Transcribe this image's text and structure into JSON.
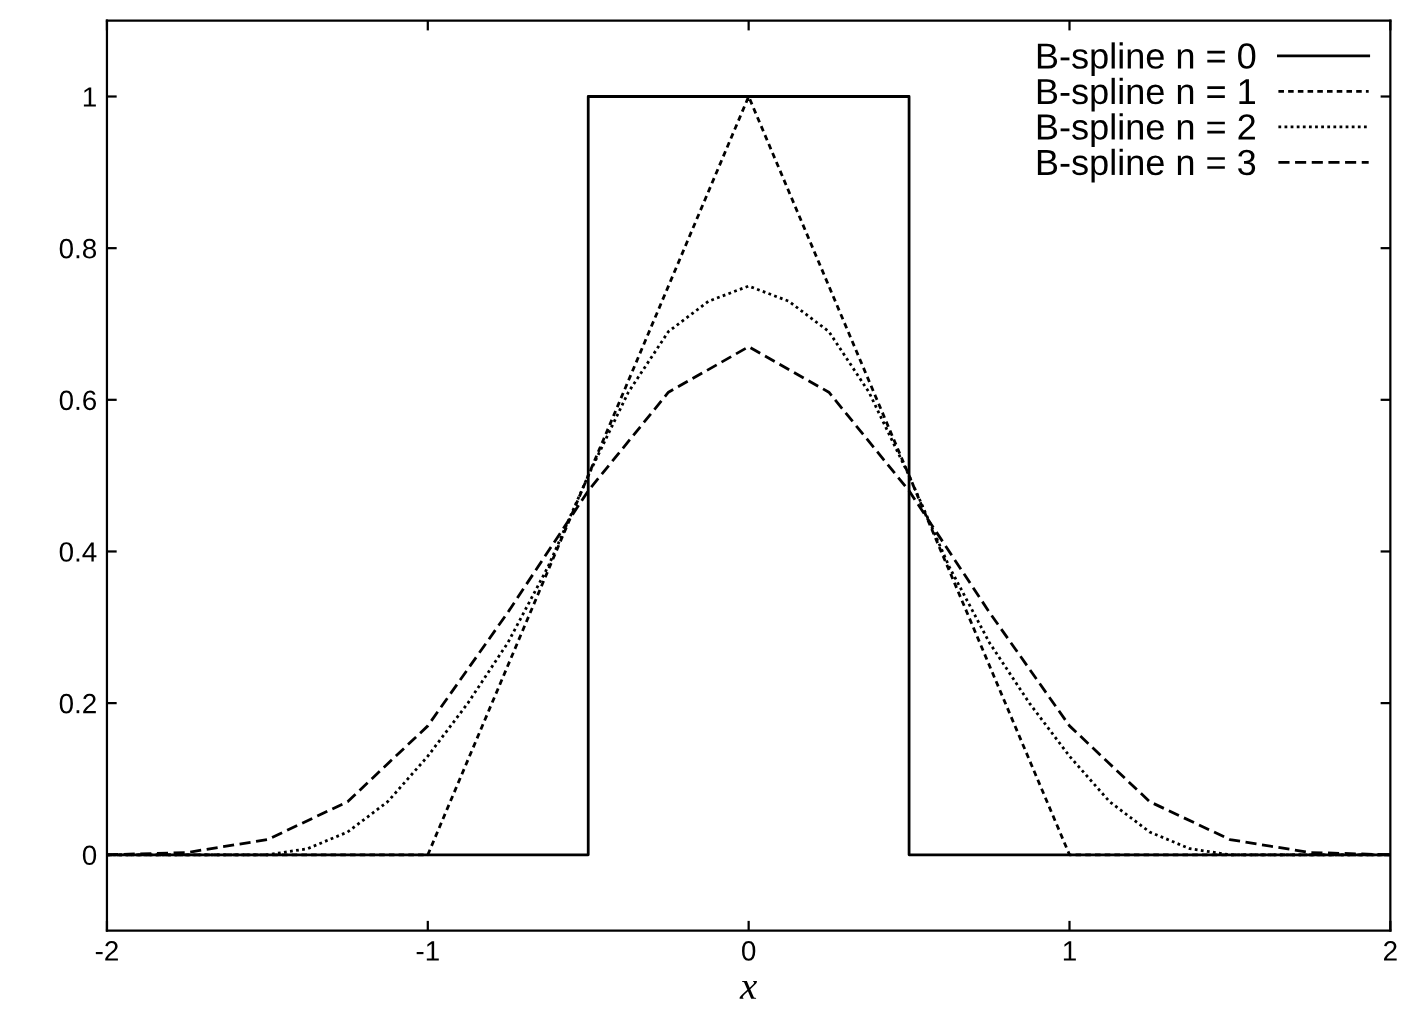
{
  "chart_data": {
    "type": "line",
    "xlabel": "x",
    "xlim": [
      -2,
      2
    ],
    "ylim": [
      -0.1,
      1.1
    ],
    "xticks": [
      -2,
      -1,
      0,
      1,
      2
    ],
    "yticks": [
      0,
      0.2,
      0.4,
      0.6,
      0.8,
      1
    ],
    "grid": false,
    "legend": "top right",
    "marker": "none",
    "series": [
      {
        "name": "B-spline n = 0",
        "color": "#000000",
        "line_style": "solid",
        "x": [
          -2,
          -0.5,
          -0.5,
          0.5,
          0.5,
          2
        ],
        "values": [
          0,
          0,
          1,
          1,
          0,
          0
        ]
      },
      {
        "name": "B-spline n = 1",
        "color": "#000000",
        "line_style": "dashed_fine",
        "x": [
          -2,
          -1,
          0,
          1,
          2
        ],
        "values": [
          0,
          0,
          1,
          0,
          0
        ]
      },
      {
        "name": "B-spline n = 2",
        "color": "#000000",
        "line_style": "dotted",
        "x": [
          -2,
          -1.5,
          -1.375,
          -1.25,
          -1.125,
          -1,
          -0.875,
          -0.75,
          -0.625,
          -0.5,
          -0.375,
          -0.25,
          -0.125,
          0,
          0.125,
          0.25,
          0.375,
          0.5,
          0.625,
          0.75,
          0.875,
          1,
          1.125,
          1.25,
          1.375,
          1.5,
          2
        ],
        "values": [
          0,
          0,
          0.008,
          0.03,
          0.07,
          0.13,
          0.2,
          0.28,
          0.38,
          0.5,
          0.61,
          0.69,
          0.73,
          0.75,
          0.73,
          0.69,
          0.61,
          0.5,
          0.38,
          0.28,
          0.2,
          0.13,
          0.07,
          0.03,
          0.008,
          0,
          0
        ]
      },
      {
        "name": "B-spline n = 3",
        "color": "#000000",
        "line_style": "dashed",
        "x": [
          -2,
          -1.75,
          -1.5,
          -1.25,
          -1,
          -0.75,
          -0.5,
          -0.25,
          0,
          0.25,
          0.5,
          0.75,
          1,
          1.25,
          1.5,
          1.75,
          2
        ],
        "values": [
          0,
          0.003,
          0.02,
          0.07,
          0.17,
          0.32,
          0.48,
          0.61,
          0.67,
          0.61,
          0.48,
          0.32,
          0.17,
          0.07,
          0.02,
          0.003,
          0
        ]
      }
    ]
  }
}
